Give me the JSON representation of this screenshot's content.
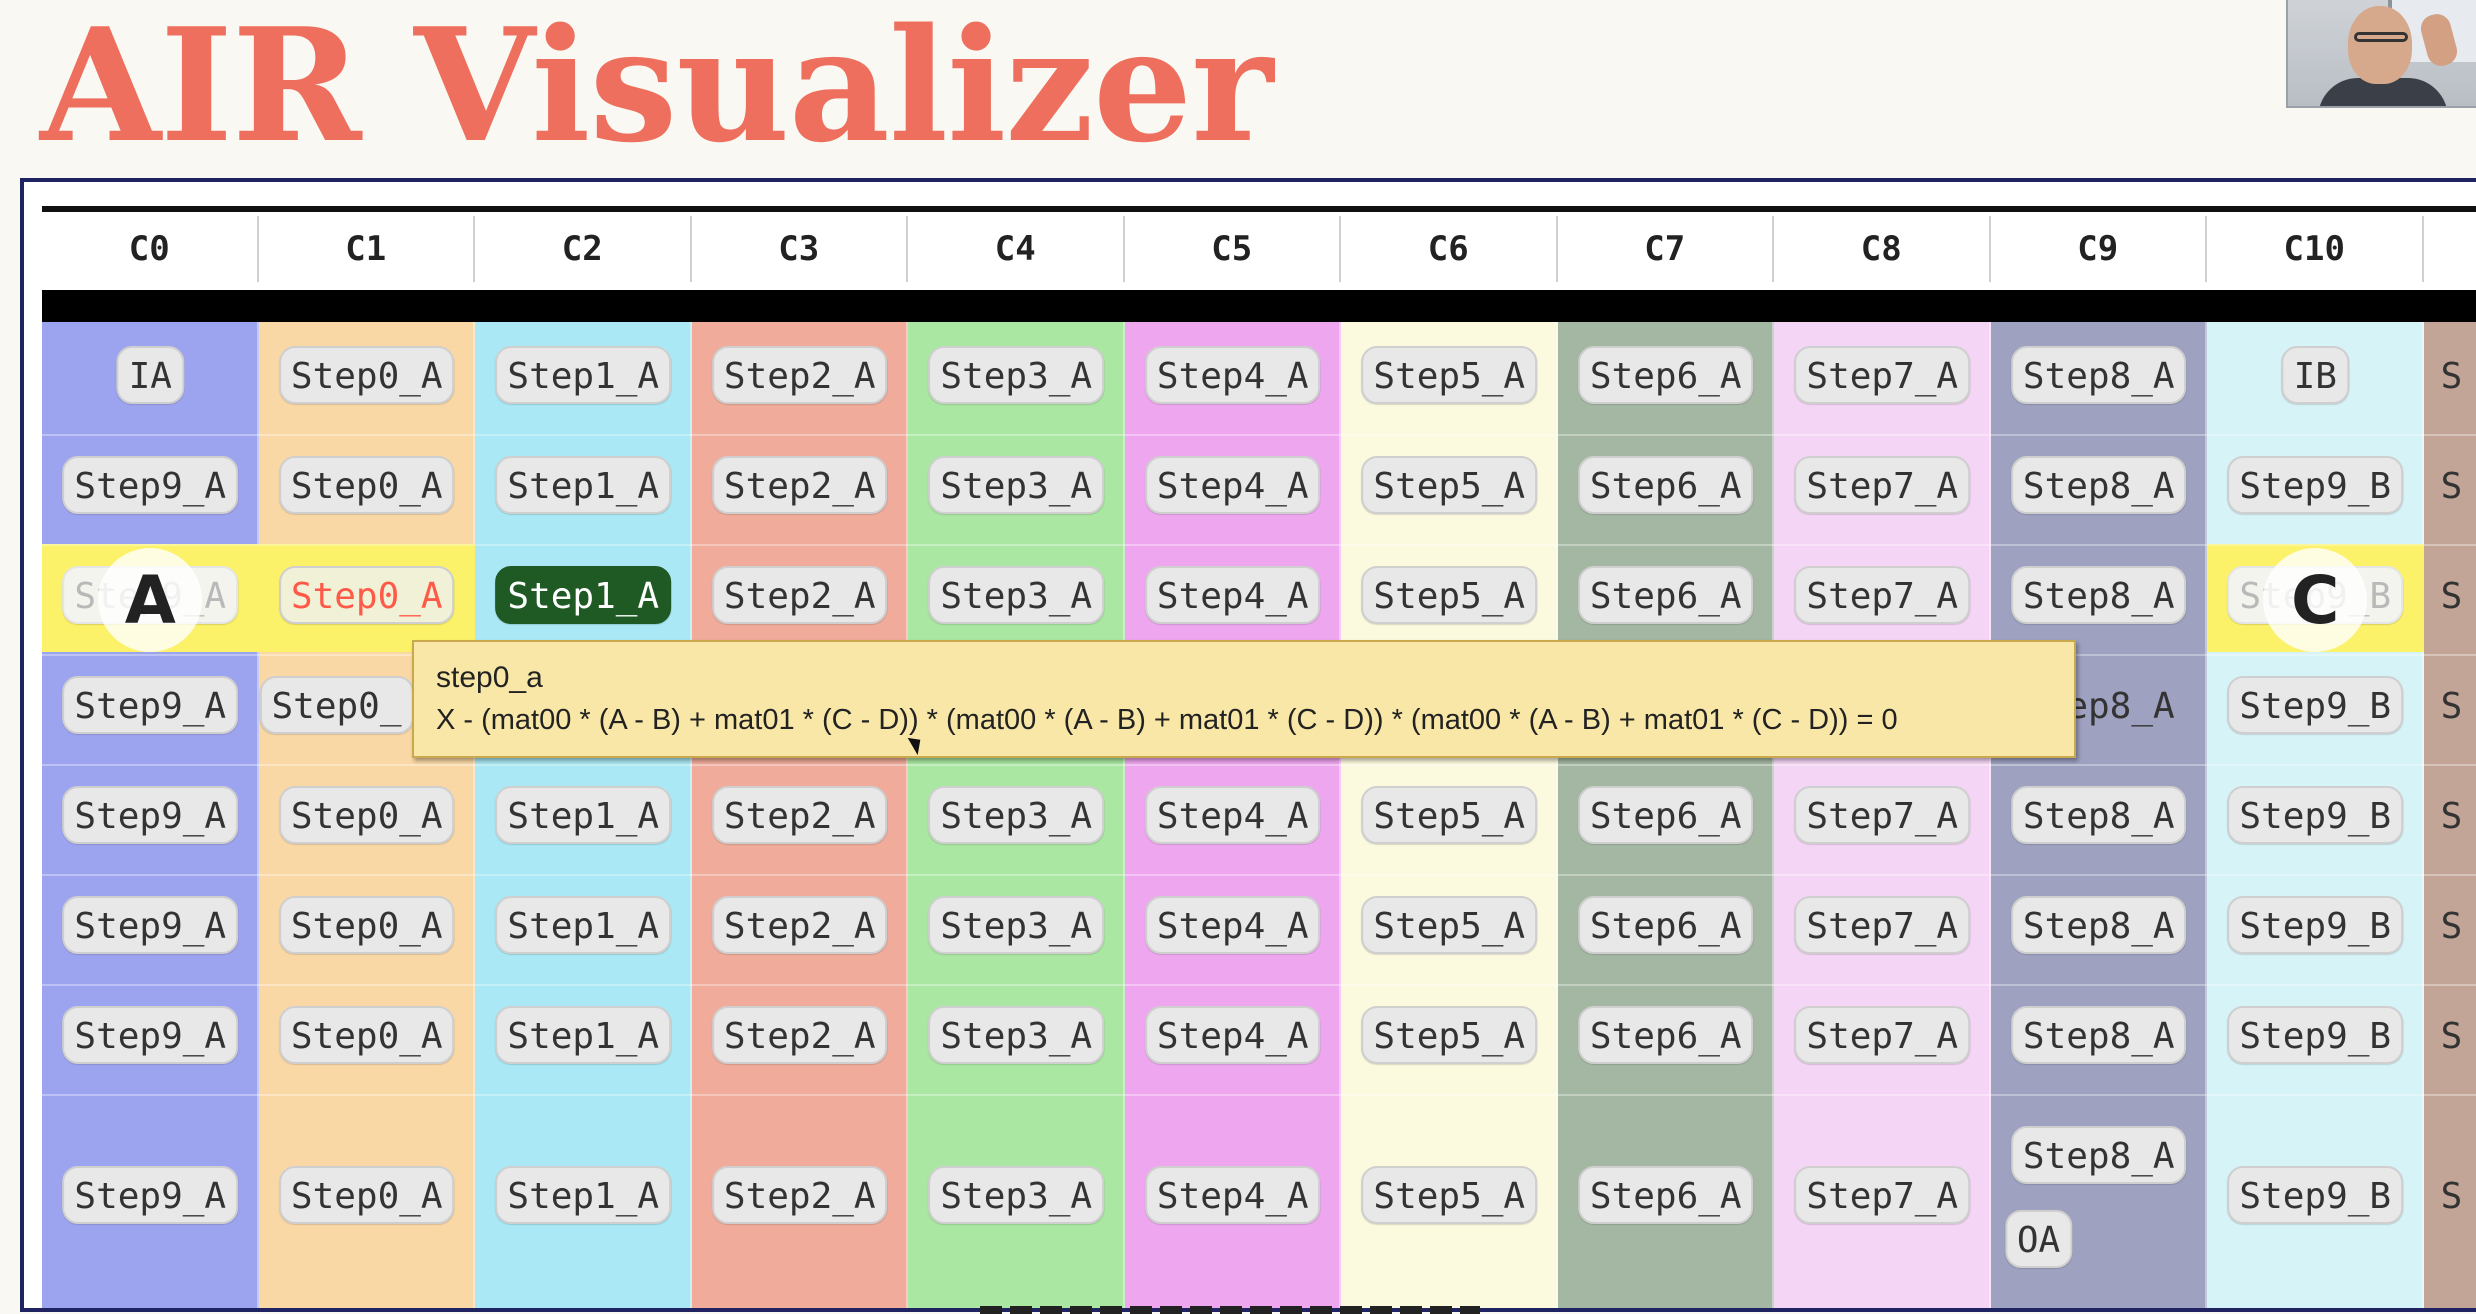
{
  "title": "AIR Visualizer",
  "columns": [
    {
      "label": "C0",
      "color": "#9da4ef"
    },
    {
      "label": "C1",
      "color": "#f9d8a6"
    },
    {
      "label": "C2",
      "color": "#a9e8f4"
    },
    {
      "label": "C3",
      "color": "#f0ab9b"
    },
    {
      "label": "C4",
      "color": "#a9e7a2"
    },
    {
      "label": "C5",
      "color": "#eea7ef"
    },
    {
      "label": "C6",
      "color": "#fbf9de"
    },
    {
      "label": "C7",
      "color": "#a4b7a2"
    },
    {
      "label": "C8",
      "color": "#f5d5f6"
    },
    {
      "label": "C9",
      "color": "#9ea1c0"
    },
    {
      "label": "C10",
      "color": "#d6f3f8"
    },
    {
      "label": "",
      "color": "#c2a597"
    }
  ],
  "rows": [
    [
      "IA",
      "Step0_A",
      "Step1_A",
      "Step2_A",
      "Step3_A",
      "Step4_A",
      "Step5_A",
      "Step6_A",
      "Step7_A",
      "Step8_A",
      "IB",
      "S"
    ],
    [
      "Step9_A",
      "Step0_A",
      "Step1_A",
      "Step2_A",
      "Step3_A",
      "Step4_A",
      "Step5_A",
      "Step6_A",
      "Step7_A",
      "Step8_A",
      "Step9_B",
      "S"
    ],
    [
      "Step9_A",
      "Step0_A",
      "Step1_A",
      "Step2_A",
      "Step3_A",
      "Step4_A",
      "Step5_A",
      "Step6_A",
      "Step7_A",
      "Step8_A",
      "Step9_B",
      "S"
    ],
    [
      "Step9_A",
      "Step0_",
      "",
      "",
      "",
      "",
      "",
      "",
      "",
      "ep8_A",
      "Step9_B",
      "S"
    ],
    [
      "Step9_A",
      "Step0_A",
      "Step1_A",
      "Step2_A",
      "Step3_A",
      "Step4_A",
      "Step5_A",
      "Step6_A",
      "Step7_A",
      "Step8_A",
      "Step9_B",
      "S"
    ],
    [
      "Step9_A",
      "Step0_A",
      "Step1_A",
      "Step2_A",
      "Step3_A",
      "Step4_A",
      "Step5_A",
      "Step6_A",
      "Step7_A",
      "Step8_A",
      "Step9_B",
      "S"
    ],
    [
      "Step9_A",
      "Step0_A",
      "Step1_A",
      "Step2_A",
      "Step3_A",
      "Step4_A",
      "Step5_A",
      "Step6_A",
      "Step7_A",
      "Step8_A",
      "Step9_B",
      "S"
    ],
    [
      "Step9_A",
      "Step0_A",
      "Step1_A",
      "Step2_A",
      "Step3_A",
      "Step4_A",
      "Step5_A",
      "Step6_A",
      "Step7_A",
      "Step8_A",
      "Step9_B",
      "S"
    ]
  ],
  "extra_label": "OA",
  "highlight_row": 2,
  "highlight_color": "#fbf26a",
  "selected": {
    "red": "C1",
    "dark": "C2",
    "faded": [
      "C0",
      "C10"
    ]
  },
  "markers": {
    "a": "A",
    "c": "C"
  },
  "tooltip": {
    "title": "step0_a",
    "expression": "X - (mat00 * (A - B) + mat01 * (C - D)) * (mat00 * (A - B) + mat01 * (C - D)) * (mat00 * (A - B) + mat01 * (C - D)) = 0"
  }
}
